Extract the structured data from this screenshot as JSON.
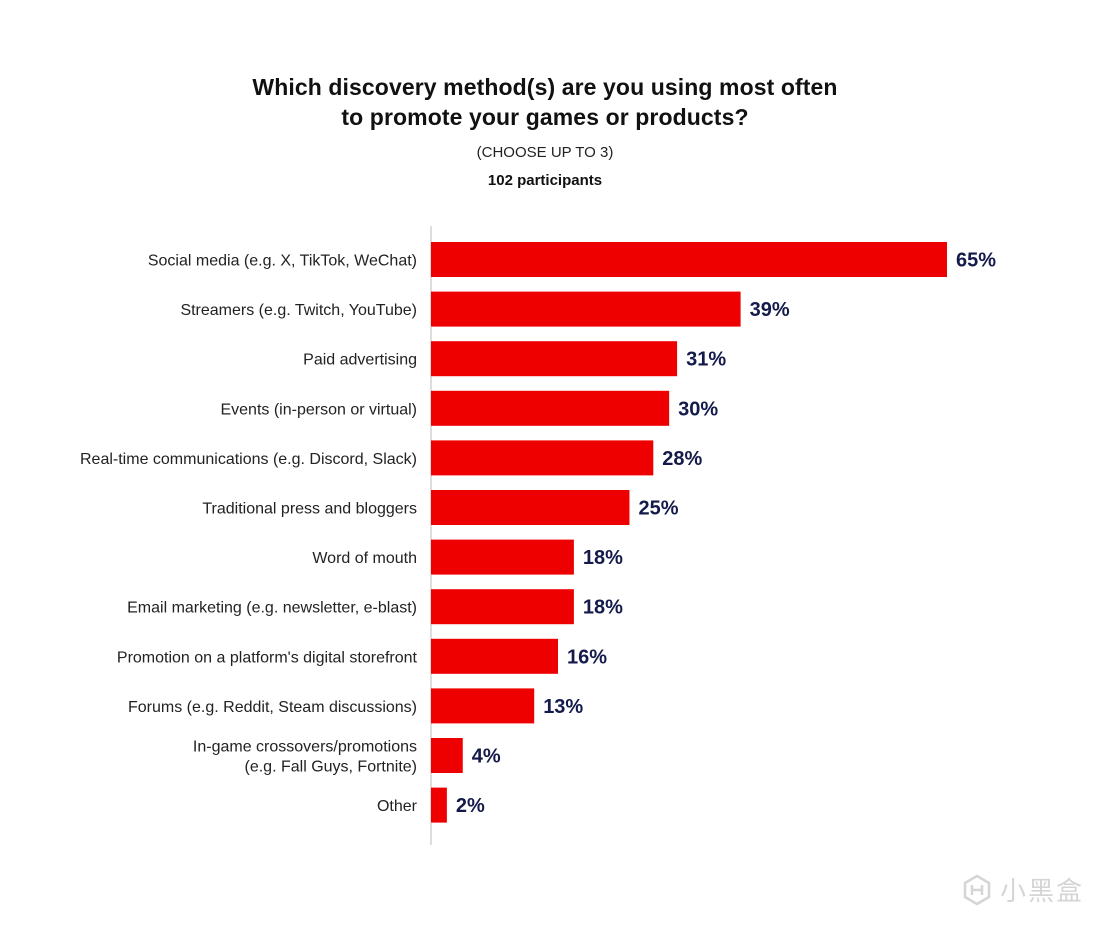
{
  "title": "Which discovery method(s) are you using most often\nto promote your games or products?",
  "subtitle": "(CHOOSE UP TO 3)",
  "participants": "102 participants",
  "colors": {
    "bar": "#ee0000",
    "value_text": "#141a4a",
    "axis": "#bbbbbb"
  },
  "watermark": {
    "icon": "heybox-logo-icon",
    "text": "小黑盒"
  },
  "chart_data": {
    "type": "bar",
    "orientation": "horizontal",
    "title": "Which discovery method(s) are you using most often to promote your games or products?",
    "subtitle": "(CHOOSE UP TO 3)",
    "note": "102 participants",
    "categories": [
      [
        "Social media (e.g. X, TikTok, WeChat)"
      ],
      [
        "Streamers (e.g. Twitch, YouTube)"
      ],
      [
        "Paid advertising"
      ],
      [
        "Events (in-person or virtual)"
      ],
      [
        "Real-time communications (e.g. Discord, Slack)"
      ],
      [
        "Traditional press and bloggers"
      ],
      [
        "Word of mouth"
      ],
      [
        "Email marketing (e.g. newsletter, e-blast)"
      ],
      [
        "Promotion on a platform's digital storefront"
      ],
      [
        "Forums (e.g. Reddit, Steam discussions)"
      ],
      [
        "In-game crossovers/promotions",
        "(e.g. Fall Guys, Fortnite)"
      ],
      [
        "Other"
      ]
    ],
    "values": [
      65,
      39,
      31,
      30,
      28,
      25,
      18,
      18,
      16,
      13,
      4,
      2
    ],
    "value_labels": [
      "65%",
      "39%",
      "31%",
      "30%",
      "28%",
      "25%",
      "18%",
      "18%",
      "16%",
      "13%",
      "4%",
      "2%"
    ],
    "unit": "%",
    "xlim": [
      0,
      65
    ],
    "grid": false,
    "legend": "none"
  }
}
